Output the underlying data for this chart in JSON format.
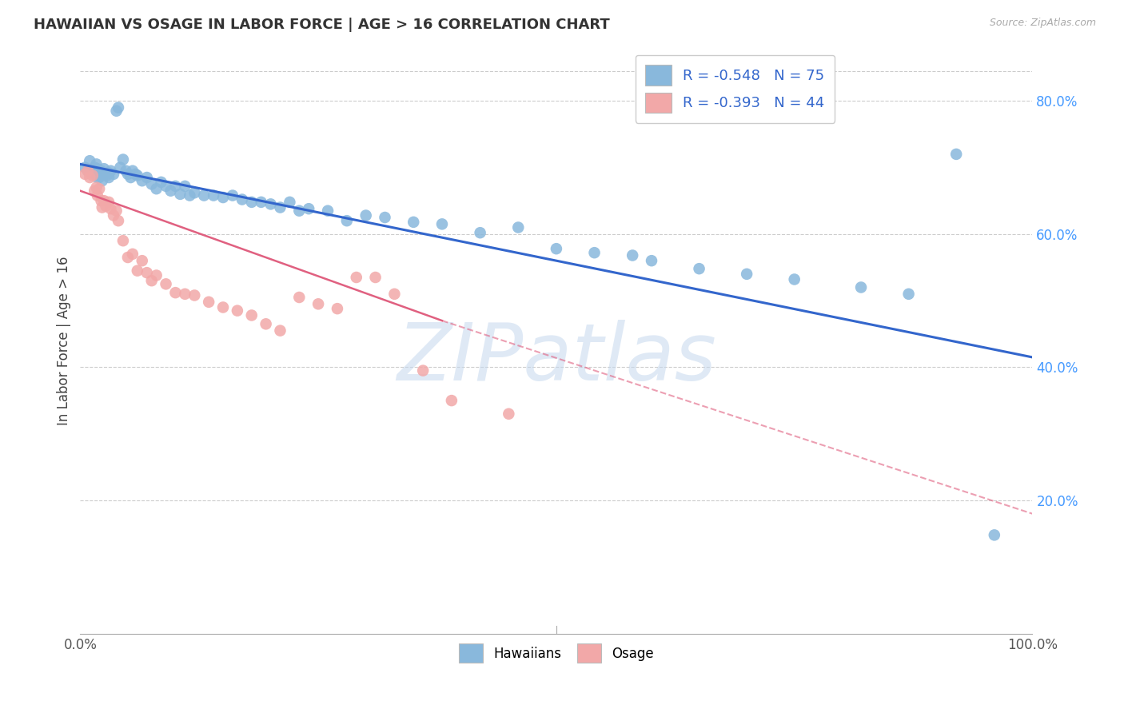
{
  "title": "HAWAIIAN VS OSAGE IN LABOR FORCE | AGE > 16 CORRELATION CHART",
  "source": "Source: ZipAtlas.com",
  "ylabel": "In Labor Force | Age > 16",
  "right_yticks": [
    "20.0%",
    "40.0%",
    "60.0%",
    "80.0%"
  ],
  "right_ytick_vals": [
    0.2,
    0.4,
    0.6,
    0.8
  ],
  "hawaiian_color": "#89B8DC",
  "osage_color": "#F2A8A8",
  "hawaiian_line_color": "#3366CC",
  "osage_line_color": "#E06080",
  "xlim": [
    0.0,
    1.0
  ],
  "ylim": [
    0.0,
    0.88
  ],
  "hawaiian_line": [
    0.0,
    0.705,
    1.0,
    0.415
  ],
  "osage_line_solid": [
    0.0,
    0.665,
    0.38,
    0.47
  ],
  "osage_line_dashed": [
    0.38,
    0.47,
    1.0,
    0.18
  ],
  "hawaiian_x": [
    0.005,
    0.008,
    0.01,
    0.012,
    0.015,
    0.015,
    0.015,
    0.017,
    0.018,
    0.018,
    0.02,
    0.02,
    0.022,
    0.022,
    0.023,
    0.025,
    0.025,
    0.028,
    0.03,
    0.03,
    0.032,
    0.035,
    0.038,
    0.04,
    0.042,
    0.045,
    0.048,
    0.05,
    0.053,
    0.055,
    0.058,
    0.06,
    0.065,
    0.07,
    0.075,
    0.08,
    0.085,
    0.09,
    0.095,
    0.1,
    0.105,
    0.11,
    0.115,
    0.12,
    0.13,
    0.14,
    0.15,
    0.16,
    0.17,
    0.18,
    0.19,
    0.2,
    0.21,
    0.22,
    0.23,
    0.24,
    0.26,
    0.28,
    0.3,
    0.32,
    0.35,
    0.38,
    0.42,
    0.46,
    0.5,
    0.54,
    0.58,
    0.6,
    0.65,
    0.7,
    0.75,
    0.82,
    0.87,
    0.92,
    0.96
  ],
  "hawaiian_y": [
    0.7,
    0.695,
    0.71,
    0.695,
    0.69,
    0.7,
    0.695,
    0.705,
    0.698,
    0.685,
    0.692,
    0.685,
    0.695,
    0.688,
    0.68,
    0.698,
    0.69,
    0.688,
    0.692,
    0.685,
    0.695,
    0.69,
    0.785,
    0.79,
    0.7,
    0.712,
    0.695,
    0.69,
    0.685,
    0.695,
    0.69,
    0.688,
    0.68,
    0.685,
    0.675,
    0.668,
    0.678,
    0.672,
    0.665,
    0.672,
    0.66,
    0.672,
    0.658,
    0.662,
    0.658,
    0.658,
    0.655,
    0.658,
    0.652,
    0.648,
    0.648,
    0.645,
    0.64,
    0.648,
    0.635,
    0.638,
    0.635,
    0.62,
    0.628,
    0.625,
    0.618,
    0.615,
    0.602,
    0.61,
    0.578,
    0.572,
    0.568,
    0.56,
    0.548,
    0.54,
    0.532,
    0.52,
    0.51,
    0.72,
    0.148
  ],
  "osage_x": [
    0.005,
    0.008,
    0.01,
    0.013,
    0.015,
    0.017,
    0.018,
    0.02,
    0.022,
    0.023,
    0.025,
    0.027,
    0.03,
    0.032,
    0.035,
    0.038,
    0.04,
    0.045,
    0.05,
    0.055,
    0.06,
    0.065,
    0.07,
    0.075,
    0.08,
    0.09,
    0.1,
    0.11,
    0.12,
    0.135,
    0.15,
    0.165,
    0.18,
    0.195,
    0.21,
    0.23,
    0.25,
    0.27,
    0.29,
    0.31,
    0.33,
    0.36,
    0.39,
    0.45
  ],
  "osage_y": [
    0.69,
    0.695,
    0.685,
    0.688,
    0.665,
    0.67,
    0.658,
    0.668,
    0.65,
    0.64,
    0.65,
    0.642,
    0.648,
    0.638,
    0.628,
    0.635,
    0.62,
    0.59,
    0.565,
    0.57,
    0.545,
    0.56,
    0.542,
    0.53,
    0.538,
    0.525,
    0.512,
    0.51,
    0.508,
    0.498,
    0.49,
    0.485,
    0.478,
    0.465,
    0.455,
    0.505,
    0.495,
    0.488,
    0.535,
    0.535,
    0.51,
    0.395,
    0.35,
    0.33
  ]
}
